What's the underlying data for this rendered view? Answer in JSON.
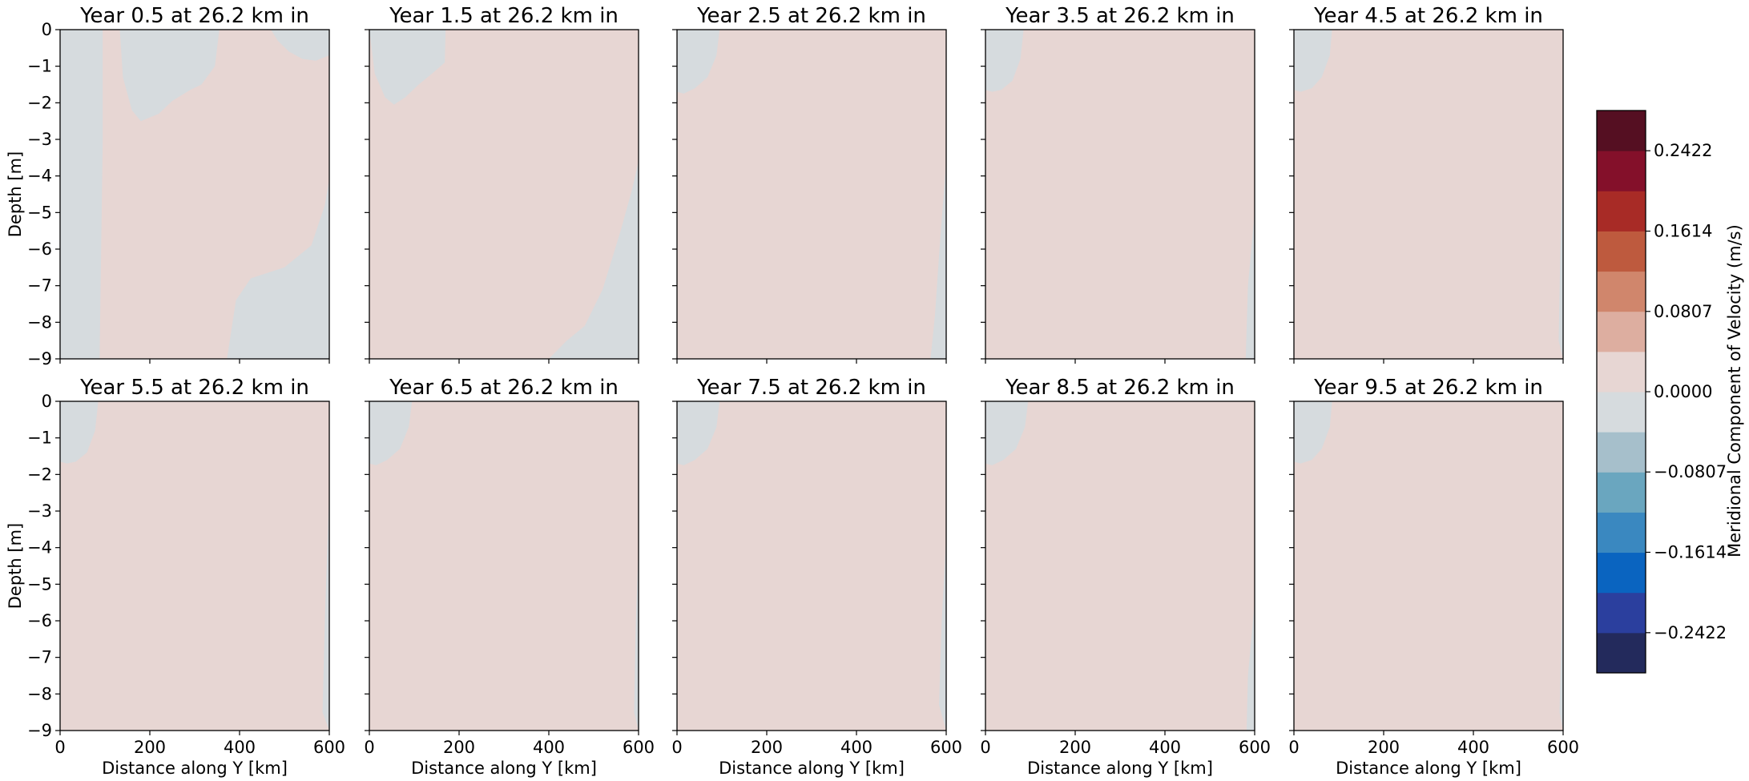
{
  "chart_data": {
    "type": "heatmap",
    "subplot_titles": [
      "Year 0.5 at 26.2 km in",
      "Year 1.5 at 26.2 km in",
      "Year 2.5 at 26.2 km in",
      "Year 3.5 at 26.2 km in",
      "Year 4.5 at 26.2 km in",
      "Year 5.5 at 26.2 km in",
      "Year 6.5 at 26.2 km in",
      "Year 7.5 at 26.2 km in",
      "Year 8.5 at 26.2 km in",
      "Year 9.5 at 26.2 km in"
    ],
    "xlabel": "Distance along Y [km]",
    "ylabel": "Depth [m]",
    "xlim": [
      0,
      600
    ],
    "ylim": [
      -9,
      0
    ],
    "x_ticks": [
      0,
      200,
      400,
      600
    ],
    "y_ticks": [
      0,
      -1,
      -2,
      -3,
      -4,
      -5,
      -6,
      -7,
      -8,
      -9
    ],
    "x_tick_labels": [
      "0",
      "200",
      "400",
      "600"
    ],
    "y_tick_labels": [
      "0",
      "−1",
      "−2",
      "−3",
      "−4",
      "−5",
      "−6",
      "−7",
      "−8",
      "−9"
    ],
    "colorbar": {
      "label": "Meridional Component of Velocity (m/s)",
      "range": [
        -0.2826,
        0.2826
      ],
      "levels": 14,
      "tick_values": [
        0.2422,
        0.1614,
        0.0807,
        0.0,
        -0.0807,
        -0.1614,
        -0.2422
      ],
      "tick_labels": [
        "0.2422",
        "0.1614",
        "0.0807",
        "0.0000",
        "−0.0807",
        "−0.1614",
        "−0.2422"
      ],
      "colors_bottom_to_top": [
        "#232a5c",
        "#2b3f9e",
        "#0a64c0",
        "#3a88c0",
        "#6aa6bf",
        "#a6bfcb",
        "#d6dbde",
        "#e7d6d3",
        "#ddaea0",
        "#d0866c",
        "#be5a3e",
        "#a82b26",
        "#84102a",
        "#550f22"
      ]
    },
    "field_colors": {
      "negative_near_zero": "#d6dbde",
      "positive_near_zero": "#e7d6d3"
    },
    "negative_regions": [
      [
        [
          [
            0,
            0
          ],
          [
            95,
            0
          ],
          [
            95,
            -3
          ],
          [
            88,
            -9
          ],
          [
            0,
            -9
          ]
        ],
        [
          [
            133,
            0
          ],
          [
            355,
            0
          ],
          [
            345,
            -1
          ],
          [
            315,
            -1.5
          ],
          [
            290,
            -1.65
          ],
          [
            250,
            -1.95
          ],
          [
            220,
            -2.3
          ],
          [
            180,
            -2.5
          ],
          [
            160,
            -2.2
          ],
          [
            140,
            -1.3
          ]
        ],
        [
          [
            470,
            0
          ],
          [
            600,
            0
          ],
          [
            600,
            -0.7
          ],
          [
            570,
            -0.85
          ],
          [
            540,
            -0.8
          ],
          [
            510,
            -0.6
          ],
          [
            485,
            -0.3
          ]
        ],
        [
          [
            600,
            -4.1
          ],
          [
            600,
            -9
          ],
          [
            372,
            -9
          ],
          [
            392,
            -7.4
          ],
          [
            425,
            -6.8
          ],
          [
            500,
            -6.5
          ],
          [
            560,
            -5.9
          ],
          [
            590,
            -4.8
          ]
        ]
      ],
      [
        [
          [
            0,
            0
          ],
          [
            170,
            0
          ],
          [
            168,
            -0.9
          ],
          [
            140,
            -1.2
          ],
          [
            110,
            -1.5
          ],
          [
            80,
            -1.85
          ],
          [
            55,
            -2.05
          ],
          [
            35,
            -1.85
          ],
          [
            12,
            -1.2
          ]
        ],
        [
          [
            600,
            -3.6
          ],
          [
            600,
            -9
          ],
          [
            400,
            -9
          ],
          [
            440,
            -8.5
          ],
          [
            480,
            -8.1
          ],
          [
            520,
            -7.1
          ],
          [
            560,
            -5.5
          ],
          [
            585,
            -4.4
          ]
        ]
      ],
      [
        [
          [
            0,
            0
          ],
          [
            95,
            0
          ],
          [
            88,
            -0.7
          ],
          [
            68,
            -1.3
          ],
          [
            40,
            -1.6
          ],
          [
            15,
            -1.75
          ],
          [
            0,
            -1.7
          ]
        ],
        [
          [
            600,
            -3.6
          ],
          [
            600,
            -9
          ],
          [
            565,
            -9
          ],
          [
            575,
            -7.8
          ],
          [
            585,
            -6
          ]
        ]
      ],
      [
        [
          [
            0,
            0
          ],
          [
            85,
            0
          ],
          [
            78,
            -0.8
          ],
          [
            60,
            -1.4
          ],
          [
            35,
            -1.65
          ],
          [
            15,
            -1.7
          ],
          [
            0,
            -1.65
          ]
        ],
        [
          [
            600,
            -5
          ],
          [
            600,
            -9
          ],
          [
            580,
            -9
          ],
          [
            585,
            -7
          ]
        ]
      ],
      [
        [
          [
            0,
            0
          ],
          [
            85,
            0
          ],
          [
            80,
            -0.7
          ],
          [
            62,
            -1.3
          ],
          [
            40,
            -1.6
          ],
          [
            15,
            -1.7
          ],
          [
            0,
            -1.65
          ]
        ],
        [
          [
            600,
            -3.5
          ],
          [
            600,
            -9
          ],
          [
            590,
            -8.5
          ],
          [
            594,
            -6
          ]
        ]
      ],
      [
        [
          [
            0,
            0
          ],
          [
            85,
            0
          ],
          [
            78,
            -0.8
          ],
          [
            60,
            -1.4
          ],
          [
            35,
            -1.65
          ],
          [
            15,
            -1.7
          ],
          [
            0,
            -1.65
          ]
        ],
        [
          [
            600,
            -2.4
          ],
          [
            600,
            -9
          ],
          [
            585,
            -8.5
          ],
          [
            590,
            -6
          ]
        ]
      ],
      [
        [
          [
            0,
            0
          ],
          [
            95,
            0
          ],
          [
            88,
            -0.7
          ],
          [
            68,
            -1.3
          ],
          [
            40,
            -1.6
          ],
          [
            15,
            -1.75
          ],
          [
            0,
            -1.7
          ]
        ],
        [
          [
            600,
            -4
          ],
          [
            600,
            -9
          ],
          [
            590,
            -8.5
          ],
          [
            594,
            -6
          ]
        ]
      ],
      [
        [
          [
            0,
            0
          ],
          [
            95,
            0
          ],
          [
            88,
            -0.7
          ],
          [
            68,
            -1.3
          ],
          [
            40,
            -1.6
          ],
          [
            15,
            -1.75
          ],
          [
            0,
            -1.7
          ]
        ],
        [
          [
            600,
            -3.7
          ],
          [
            600,
            -9
          ],
          [
            584,
            -8.3
          ],
          [
            590,
            -6
          ]
        ]
      ],
      [
        [
          [
            0,
            0
          ],
          [
            95,
            0
          ],
          [
            88,
            -0.7
          ],
          [
            68,
            -1.3
          ],
          [
            40,
            -1.6
          ],
          [
            15,
            -1.75
          ],
          [
            0,
            -1.7
          ]
        ],
        [
          [
            600,
            -5.5
          ],
          [
            600,
            -9
          ],
          [
            582,
            -9
          ],
          [
            585,
            -7.5
          ]
        ]
      ],
      [
        [
          [
            0,
            0
          ],
          [
            85,
            0
          ],
          [
            80,
            -0.7
          ],
          [
            62,
            -1.3
          ],
          [
            40,
            -1.6
          ],
          [
            15,
            -1.7
          ],
          [
            0,
            -1.65
          ]
        ],
        [
          [
            600,
            -5
          ],
          [
            600,
            -9
          ],
          [
            592,
            -8.5
          ],
          [
            595,
            -7
          ]
        ]
      ]
    ]
  }
}
